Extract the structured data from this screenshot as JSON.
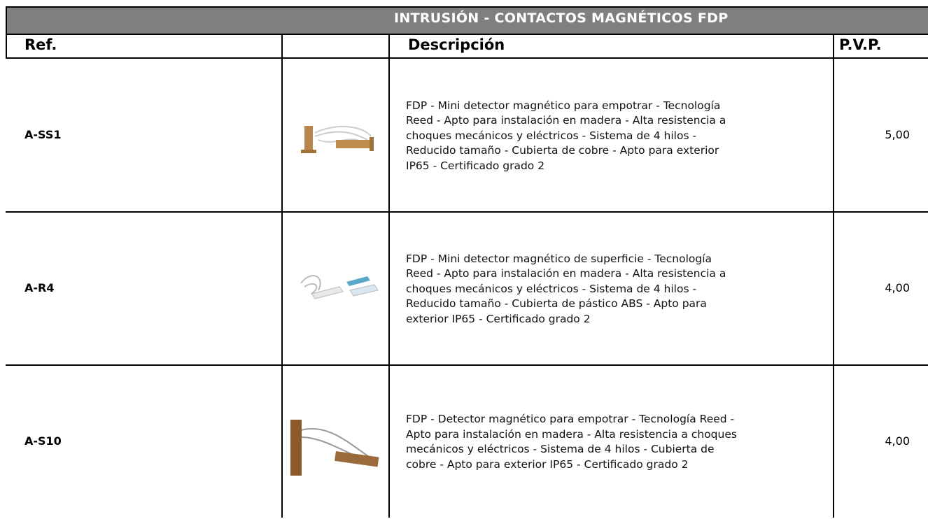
{
  "header": {
    "title": "INTRUSIÓN - CONTACTOS MAGNÉTICOS FDP"
  },
  "table": {
    "columns": [
      "Ref.",
      "Descripción",
      "P.V.P."
    ],
    "rows": [
      {
        "ref": "A-SS1",
        "description": [
          "FDP - Mini detector magnético para empotrar - Tecnología",
          "Reed - Apto para instalación en madera - Alta resistencia a",
          "choques mecánicos y eléctricos - Sistema de 4 hilos -",
          "Reducido tamaño - Cubierta de cobre - Apto para exterior",
          "IP65 - Certificado grado 2"
        ],
        "price": "5,00"
      },
      {
        "ref": "A-R4",
        "description": [
          "FDP - Mini detector magnético de superficie - Tecnología",
          "Reed - Apto para instalación en madera - Alta resistencia a",
          "choques mecánicos y eléctricos - Sistema de 4 hilos -",
          "Reducido tamaño - Cubierta de pástico ABS - Apto para",
          "exterior IP65 - Certificado grado 2"
        ],
        "price": "4,00"
      },
      {
        "ref": "A-S10",
        "description": [
          "FDP - Detector magnético para empotrar - Tecnología Reed -",
          "Apto para instalación en madera - Alta resistencia a choques",
          "mecánicos y eléctricos - Sistema de 4 hilos - Cubierta de",
          "cobre - Apto para exterior IP65 - Certificado grado 2"
        ],
        "price": "4,00"
      }
    ]
  }
}
